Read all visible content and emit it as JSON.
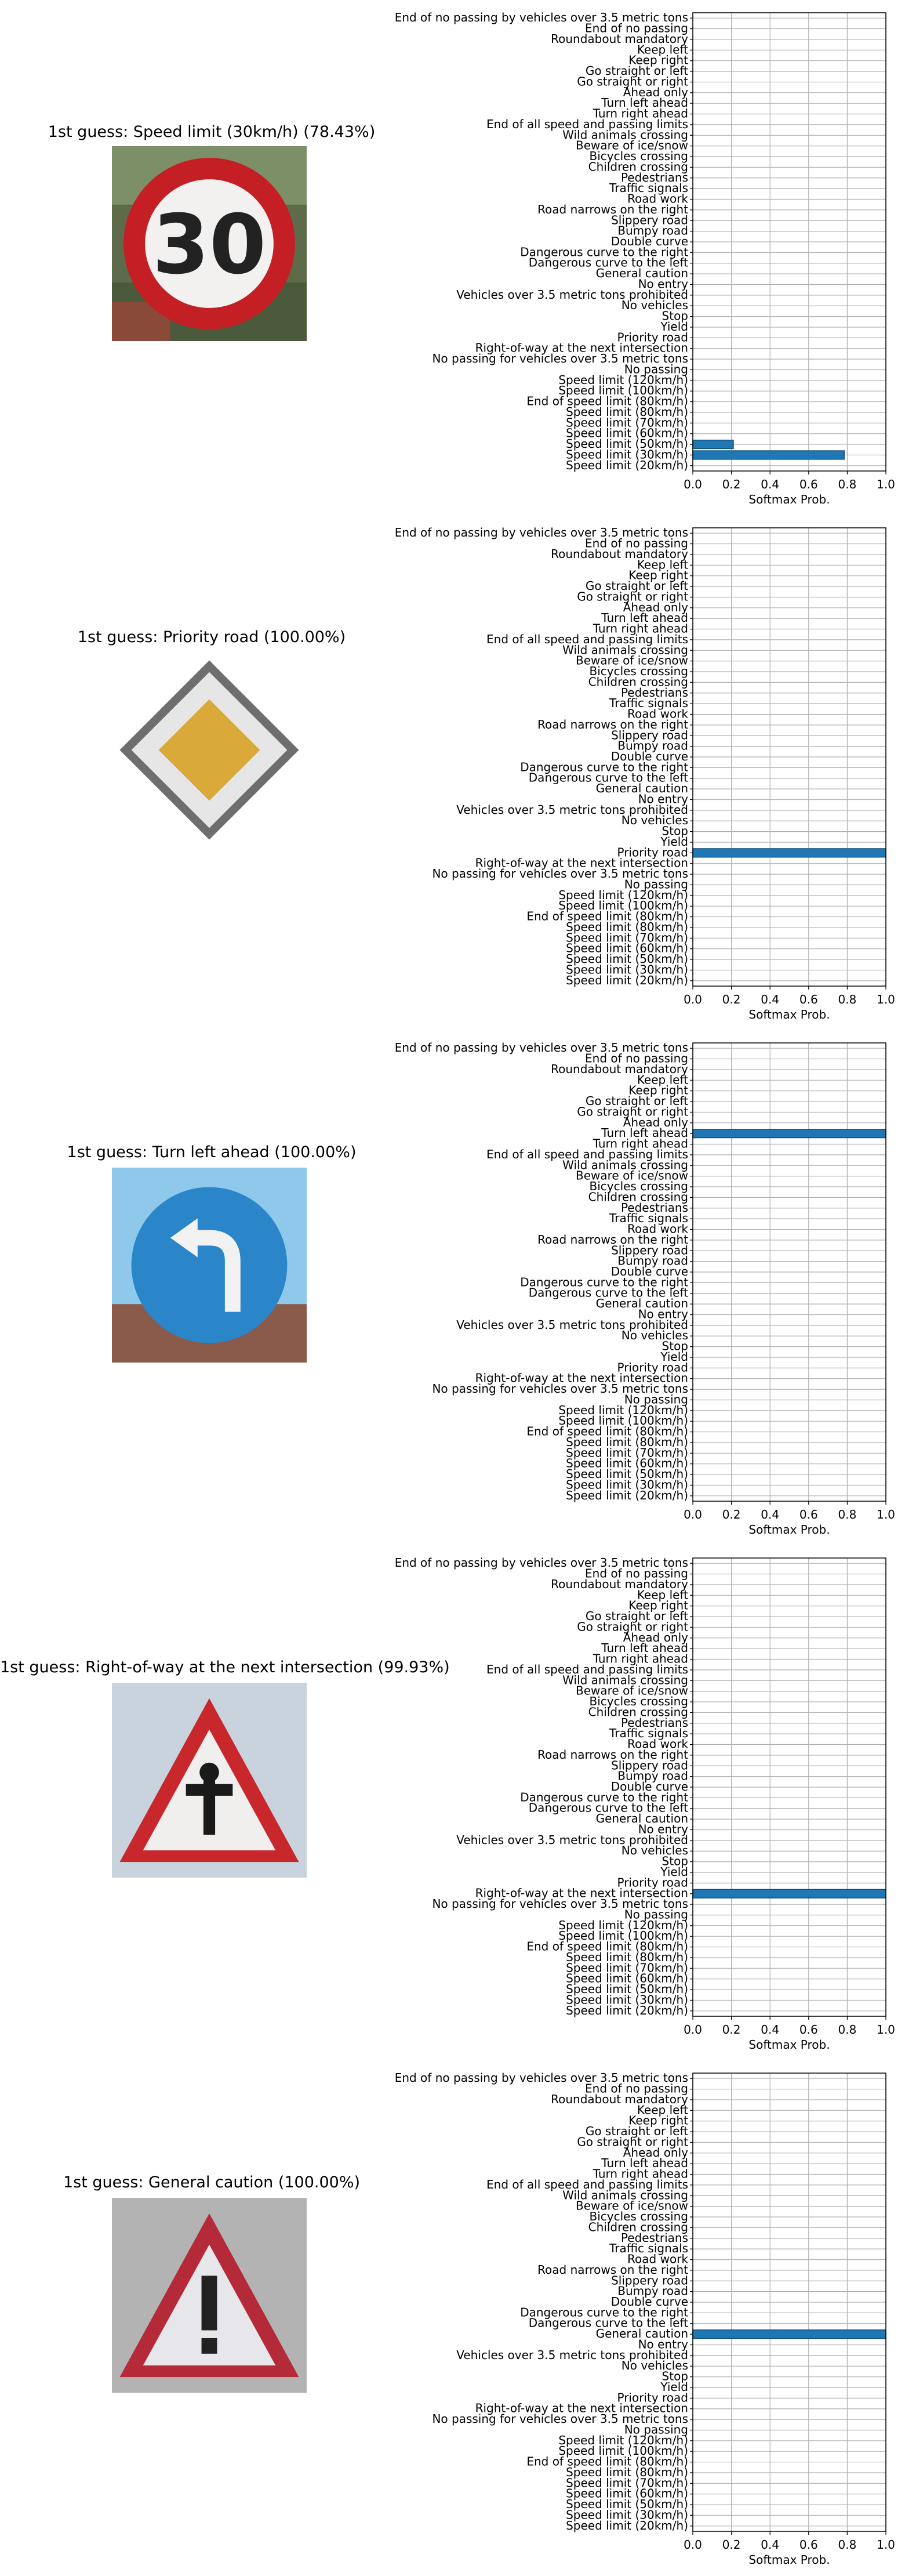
{
  "categories": [
    "Speed limit (20km/h)",
    "Speed limit (30km/h)",
    "Speed limit (50km/h)",
    "Speed limit (60km/h)",
    "Speed limit (70km/h)",
    "Speed limit (80km/h)",
    "End of speed limit (80km/h)",
    "Speed limit (100km/h)",
    "Speed limit (120km/h)",
    "No passing",
    "No passing for vehicles over 3.5 metric tons",
    "Right-of-way at the next intersection",
    "Priority road",
    "Yield",
    "Stop",
    "No vehicles",
    "Vehicles over 3.5 metric tons prohibited",
    "No entry",
    "General caution",
    "Dangerous curve to the left",
    "Dangerous curve to the right",
    "Double curve",
    "Bumpy road",
    "Slippery road",
    "Road narrows on the right",
    "Road work",
    "Traffic signals",
    "Pedestrians",
    "Children crossing",
    "Bicycles crossing",
    "Beware of ice/snow",
    "Wild animals crossing",
    "End of all speed and passing limits",
    "Turn right ahead",
    "Turn left ahead",
    "Ahead only",
    "Go straight or right",
    "Go straight or left",
    "Keep right",
    "Keep left",
    "Roundabout mandatory",
    "End of no passing",
    "End of no passing by vehicles over 3.5 metric tons"
  ],
  "xticks": [
    "0.0",
    "0.2",
    "0.4",
    "0.6",
    "0.8",
    "1.0"
  ],
  "xlabel": "Softmax Prob.",
  "colors": {
    "bar": "#1f77b4",
    "bar_edge": "#0e4d7a",
    "grid": "#b0b0b0"
  },
  "panels": [
    {
      "guess_title": "1st guess: Speed limit (30km/h) (78.43%)",
      "sign_icon": "speed-limit-30-sign-icon"
    },
    {
      "guess_title": "1st guess: Priority road (100.00%)",
      "sign_icon": "priority-road-sign-icon"
    },
    {
      "guess_title": "1st guess: Turn left ahead (100.00%)",
      "sign_icon": "turn-left-ahead-sign-icon"
    },
    {
      "guess_title": "1st guess: Right-of-way at the next intersection (99.93%)",
      "sign_icon": "right-of-way-sign-icon"
    },
    {
      "guess_title": "1st guess: General caution (100.00%)",
      "sign_icon": "general-caution-sign-icon"
    }
  ],
  "chart_data": [
    {
      "type": "bar",
      "orientation": "horizontal",
      "xlabel": "Softmax Prob.",
      "xlim": [
        0,
        1
      ],
      "grid": true,
      "values": {
        "Speed limit (30km/h)": 0.7843,
        "Speed limit (50km/h)": 0.21
      }
    },
    {
      "type": "bar",
      "orientation": "horizontal",
      "xlabel": "Softmax Prob.",
      "xlim": [
        0,
        1
      ],
      "grid": true,
      "values": {
        "Priority road": 1.0
      }
    },
    {
      "type": "bar",
      "orientation": "horizontal",
      "xlabel": "Softmax Prob.",
      "xlim": [
        0,
        1
      ],
      "grid": true,
      "values": {
        "Turn left ahead": 1.0
      }
    },
    {
      "type": "bar",
      "orientation": "horizontal",
      "xlabel": "Softmax Prob.",
      "xlim": [
        0,
        1
      ],
      "grid": true,
      "values": {
        "Right-of-way at the next intersection": 0.9993
      }
    },
    {
      "type": "bar",
      "orientation": "horizontal",
      "xlabel": "Softmax Prob.",
      "xlim": [
        0,
        1
      ],
      "grid": true,
      "values": {
        "General caution": 1.0
      }
    }
  ]
}
